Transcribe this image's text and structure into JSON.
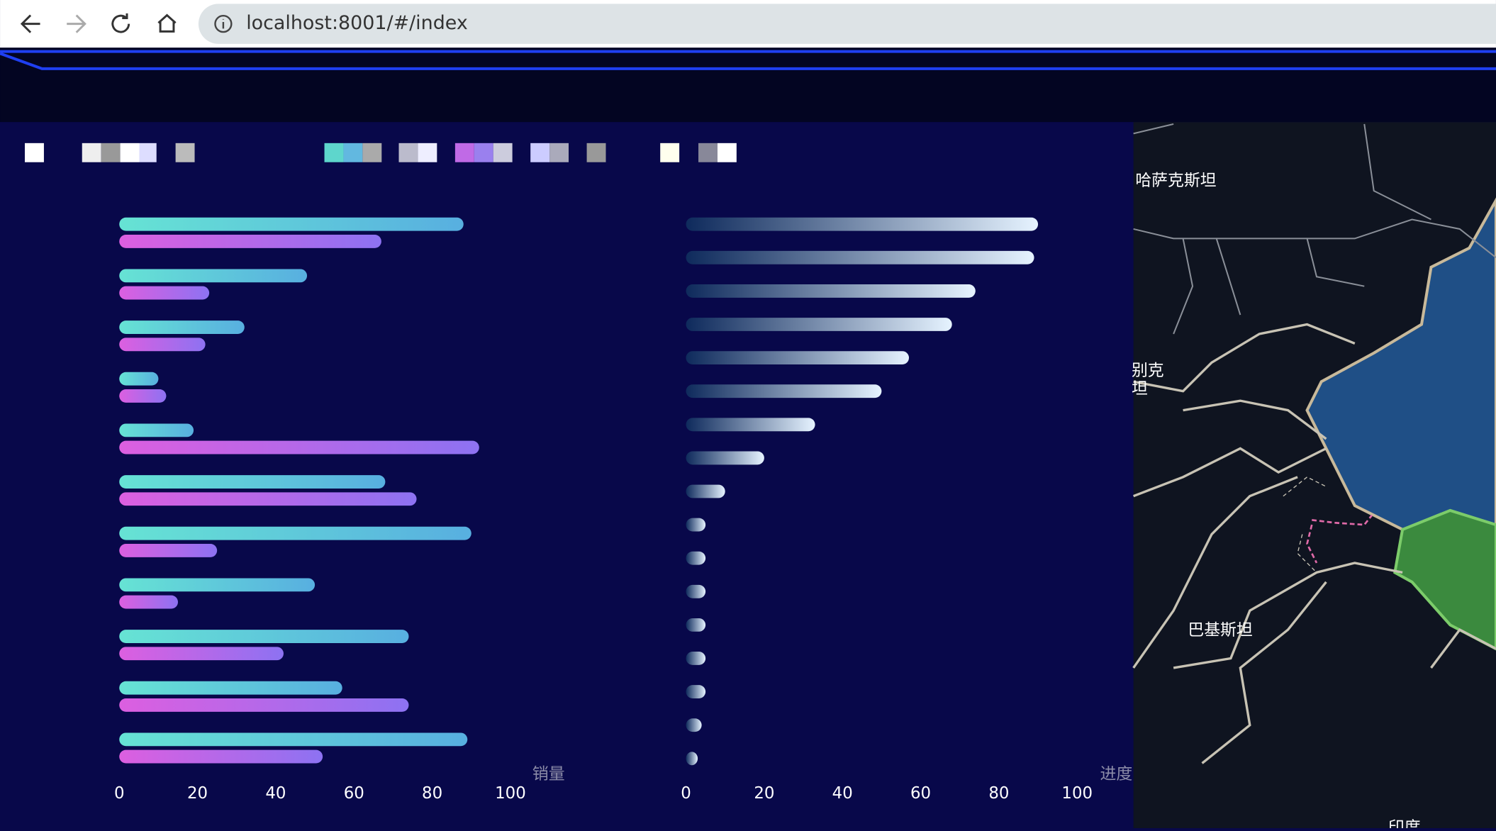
{
  "browser": {
    "url": "localhost:8001/#/index"
  },
  "map": {
    "labels": [
      "哈萨克斯坦",
      "别克",
      "坦",
      "巴基斯坦",
      "印度"
    ]
  },
  "chart_data": [
    {
      "type": "bar",
      "orientation": "horizontal",
      "categories": [
        null,
        null,
        null,
        null,
        null,
        null,
        null,
        null,
        null,
        null,
        null
      ],
      "series": [
        {
          "color": "#66e3d4",
          "color_end": "#58afe0",
          "values": [
            88,
            48,
            32,
            10,
            19,
            68,
            90,
            50,
            74,
            57,
            89
          ]
        },
        {
          "color": "#dc5fe0",
          "color_end": "#8d72f2",
          "values": [
            67,
            23,
            22,
            12,
            92,
            76,
            25,
            15,
            42,
            74,
            52
          ]
        }
      ],
      "xlim": [
        0,
        100
      ],
      "xticks": [
        0,
        20,
        40,
        60,
        80,
        100
      ],
      "xlabel": "销量",
      "grid": false
    },
    {
      "type": "bar",
      "orientation": "horizontal",
      "categories": [
        null,
        null,
        null,
        null,
        null,
        null,
        null,
        null,
        null,
        null,
        null,
        null,
        null,
        null,
        null,
        null,
        null
      ],
      "series": [
        {
          "color": "#0e2a5c",
          "color_end": "#e6f3ff",
          "values": [
            90,
            89,
            74,
            68,
            57,
            50,
            33,
            20,
            10,
            5,
            5,
            5,
            5,
            5,
            5,
            4,
            3
          ]
        }
      ],
      "xlim": [
        0,
        100
      ],
      "xticks": [
        0,
        20,
        40,
        60,
        80,
        100
      ],
      "xlabel": "进度",
      "grid": false
    }
  ]
}
